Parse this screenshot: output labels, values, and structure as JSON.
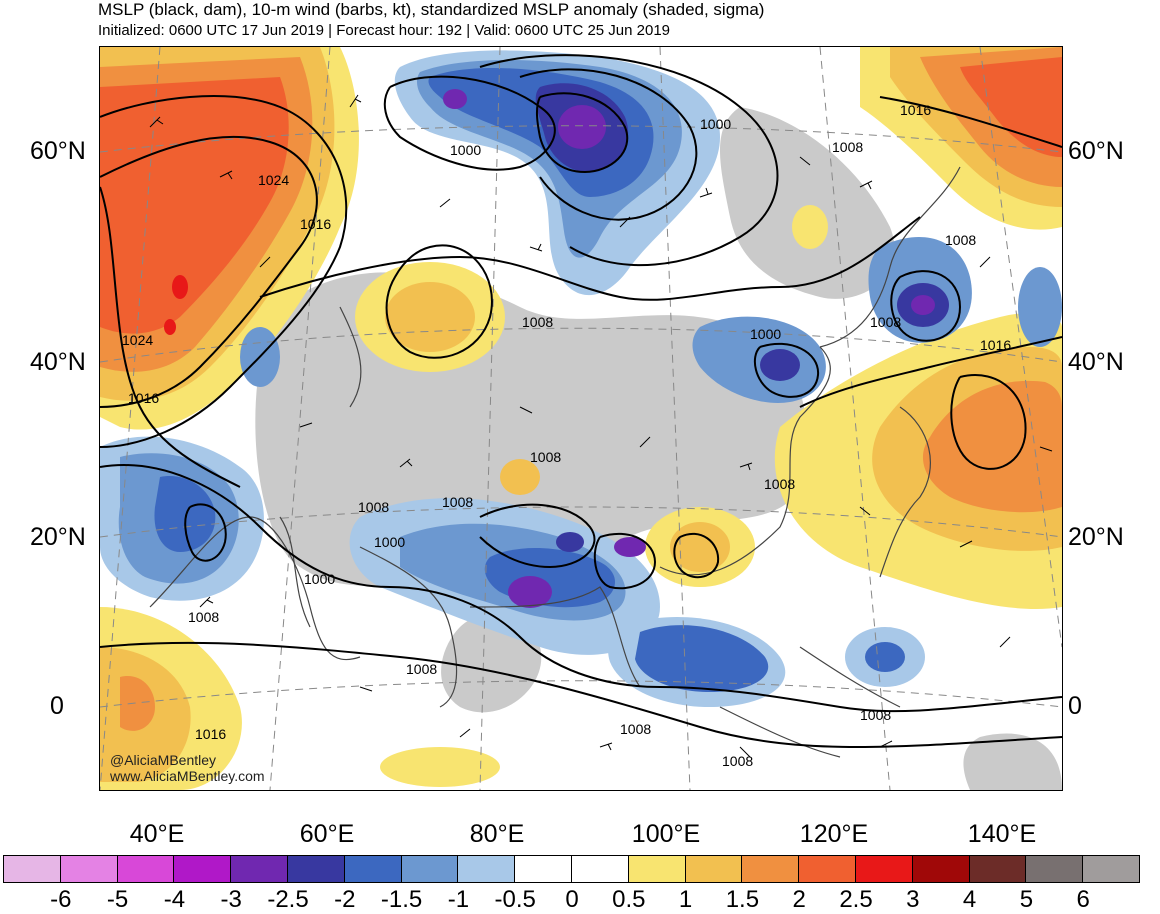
{
  "header": {
    "title": "MSLP (black, dam), 10-m wind (barbs, kt), standardized MSLP anomaly (shaded, sigma)",
    "subtitle": "Initialized: 0600 UTC 17 Jun 2019 | Forecast hour: 192 | Valid: 0600 UTC 25 Jun 2019"
  },
  "map": {
    "lat_labels": [
      "60°N",
      "40°N",
      "20°N",
      "0"
    ],
    "lon_labels": [
      "40°E",
      "60°E",
      "80°E",
      "100°E",
      "120°E",
      "140°E"
    ],
    "contour_labels": [
      "1024",
      "1016",
      "1024",
      "1016",
      "1000",
      "1000",
      "1008",
      "1016",
      "1008",
      "1000",
      "1016",
      "1008",
      "1008",
      "1008",
      "1008",
      "1000",
      "1000",
      "1008",
      "1008",
      "1008",
      "1008",
      "1016",
      "1008",
      "1008",
      "1008"
    ],
    "credit_line1": "@AliciaMBentley",
    "credit_line2": "www.AliciaMBentley.com"
  },
  "colorbar": {
    "labels": [
      "-6",
      "-5",
      "-4",
      "-3",
      "-2.5",
      "-2",
      "-1.5",
      "-1",
      "-0.5",
      "0",
      "0.5",
      "1",
      "1.5",
      "2",
      "2.5",
      "3",
      "4",
      "5",
      "6"
    ],
    "colors": [
      "#e6b6e6",
      "#e482e4",
      "#d848d8",
      "#b018c8",
      "#7028b0",
      "#3838a0",
      "#3c68c0",
      "#6c98d0",
      "#a8c8e8",
      "#ffffff",
      "#ffffff",
      "#f8e470",
      "#f2c050",
      "#f09040",
      "#f06030",
      "#e81818",
      "#a00808",
      "#6c2c28",
      "#787070",
      "#a09c9c"
    ]
  }
}
